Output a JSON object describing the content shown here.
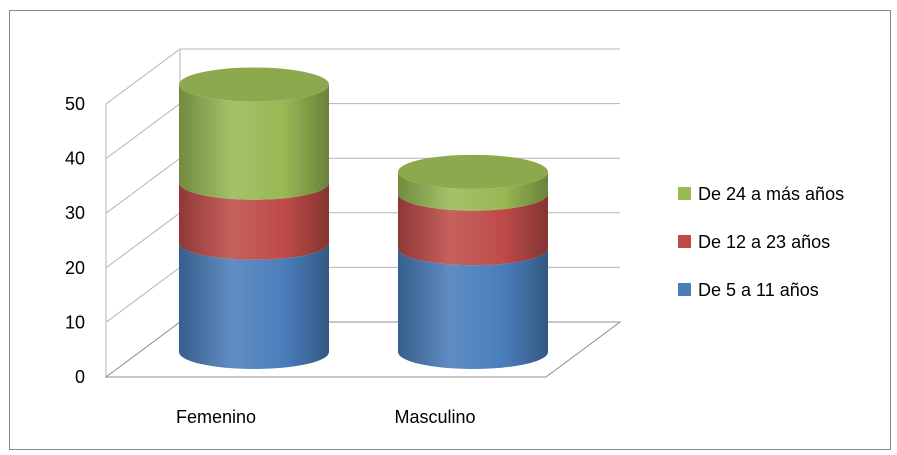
{
  "chart_data": {
    "type": "bar",
    "style": "3d-stacked-cylinder",
    "categories": [
      "Femenino",
      "Masculino"
    ],
    "series": [
      {
        "name": "De 5 a 11 años",
        "values": [
          20,
          19
        ],
        "color": "#4a7ebb"
      },
      {
        "name": "De 12 a 23 años",
        "values": [
          11,
          10
        ],
        "color": "#be4b48"
      },
      {
        "name": "De 24 a más años",
        "values": [
          18,
          4
        ],
        "color": "#98b954"
      }
    ],
    "y_ticks": [
      "0",
      "10",
      "20",
      "30",
      "40",
      "50"
    ],
    "ylim": [
      0,
      50
    ],
    "grid": true,
    "legend_position": "right",
    "title": "",
    "xlabel": "",
    "ylabel": ""
  }
}
